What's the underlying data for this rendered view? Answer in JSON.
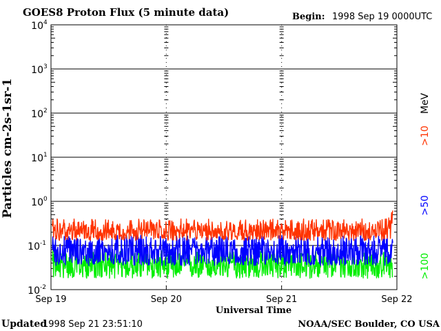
{
  "header": {
    "title": "GOES8 Proton Flux (5 minute data)",
    "begin_label": "Begin:",
    "begin_value": "1998 Sep 19 0000UTC"
  },
  "footer": {
    "updated_label": "Updated",
    "updated_value": "1998 Sep 21 23:51:10",
    "credit": "NOAA/SEC Boulder, CO USA"
  },
  "chart_data": {
    "type": "line",
    "title": "GOES8 Proton Flux (5 minute data)",
    "xlabel": "Universal Time",
    "ylabel": "Particles cm-2s-1sr-1",
    "y_scale": "log",
    "ylim": [
      0.01,
      10000
    ],
    "y_ticks": [
      {
        "base": "10",
        "exp": "-2"
      },
      {
        "base": "10",
        "exp": "-1"
      },
      {
        "base": "10",
        "exp": "0"
      },
      {
        "base": "10",
        "exp": "1"
      },
      {
        "base": "10",
        "exp": "2"
      },
      {
        "base": "10",
        "exp": "3"
      },
      {
        "base": "10",
        "exp": "4"
      }
    ],
    "x_ticks": [
      "Sep 19",
      "Sep 20",
      "Sep 21",
      "Sep 22"
    ],
    "x_start": "1998-09-19 00:00",
    "x_end": "1998-09-22 00:00",
    "grid": true,
    "legend_placement": "right",
    "legend": [
      {
        "label": ">10",
        "color": "#ff3300"
      },
      {
        "label": "MeV",
        "color": "#000000"
      },
      {
        "label": ">50",
        "color": "#0000ff"
      },
      {
        "label": ">100",
        "color": "#00ee00"
      }
    ],
    "series": [
      {
        "name": ">10 MeV",
        "color": "#ff3300",
        "typical": 0.22,
        "min": 0.13,
        "max": 0.4,
        "peak_end": 0.8
      },
      {
        "name": ">50 MeV",
        "color": "#0000ff",
        "typical": 0.08,
        "min": 0.035,
        "max": 0.17
      },
      {
        "name": ">100 MeV",
        "color": "#00ee00",
        "typical": 0.04,
        "min": 0.018,
        "max": 0.075
      }
    ]
  }
}
